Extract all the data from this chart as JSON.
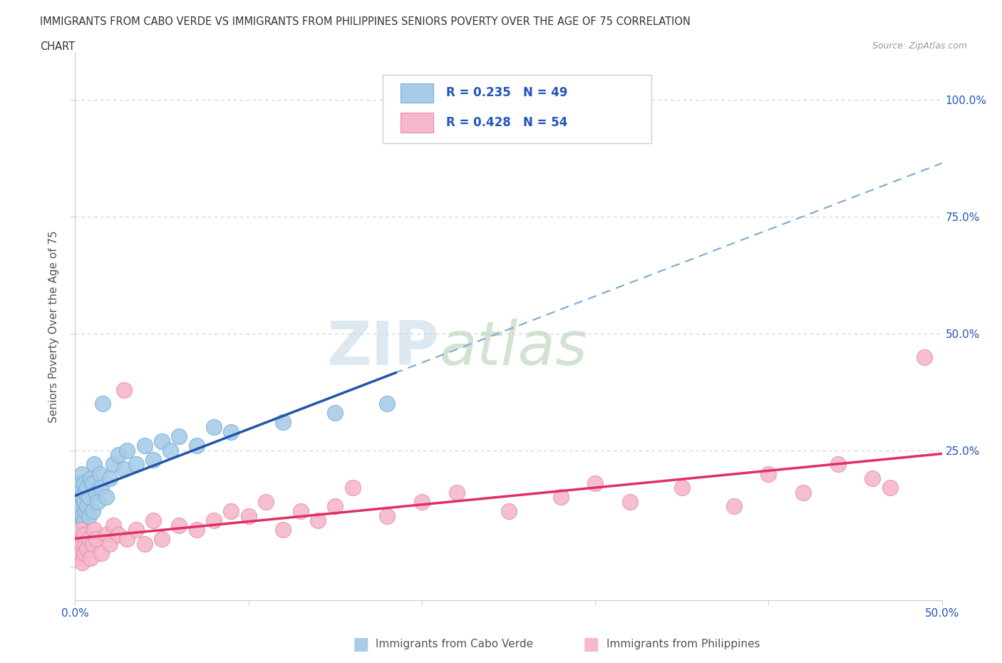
{
  "title_line1": "IMMIGRANTS FROM CABO VERDE VS IMMIGRANTS FROM PHILIPPINES SENIORS POVERTY OVER THE AGE OF 75 CORRELATION",
  "title_line2": "CHART",
  "source": "Source: ZipAtlas.com",
  "ylabel": "Seniors Poverty Over the Age of 75",
  "xlim": [
    0.0,
    0.5
  ],
  "ylim": [
    -0.07,
    1.1
  ],
  "cabo_verde_color": "#a8cce8",
  "cabo_verde_edge": "#7ab0d8",
  "philippines_color": "#f5b8cc",
  "philippines_edge": "#e890a8",
  "cabo_verde_R": 0.235,
  "cabo_verde_N": 49,
  "philippines_R": 0.428,
  "philippines_N": 54,
  "blue_line_color": "#2255aa",
  "pink_line_color": "#e03060",
  "blue_dash_color": "#7aaad4",
  "legend_R_color": "#1a6bb5",
  "tick_color": "#2255bb",
  "background_color": "#ffffff",
  "grid_color": "#cccccc",
  "title_color": "#333333",
  "axis_label_color": "#555555",
  "cabo_verde_x": [
    0.001,
    0.001,
    0.001,
    0.002,
    0.002,
    0.002,
    0.002,
    0.003,
    0.003,
    0.003,
    0.004,
    0.004,
    0.004,
    0.005,
    0.005,
    0.005,
    0.006,
    0.006,
    0.007,
    0.007,
    0.008,
    0.008,
    0.009,
    0.01,
    0.01,
    0.011,
    0.012,
    0.013,
    0.014,
    0.015,
    0.016,
    0.018,
    0.02,
    0.022,
    0.025,
    0.028,
    0.03,
    0.035,
    0.04,
    0.045,
    0.05,
    0.055,
    0.06,
    0.07,
    0.08,
    0.09,
    0.12,
    0.15,
    0.18
  ],
  "cabo_verde_y": [
    0.1,
    0.14,
    0.17,
    0.08,
    0.12,
    0.15,
    0.18,
    0.09,
    0.13,
    0.16,
    0.11,
    0.15,
    0.2,
    0.1,
    0.14,
    0.18,
    0.12,
    0.16,
    0.13,
    0.17,
    0.11,
    0.15,
    0.19,
    0.12,
    0.18,
    0.22,
    0.16,
    0.14,
    0.2,
    0.17,
    0.35,
    0.15,
    0.19,
    0.22,
    0.24,
    0.21,
    0.25,
    0.22,
    0.26,
    0.23,
    0.27,
    0.25,
    0.28,
    0.26,
    0.3,
    0.29,
    0.31,
    0.33,
    0.35
  ],
  "philippines_x": [
    0.001,
    0.001,
    0.002,
    0.002,
    0.003,
    0.003,
    0.004,
    0.004,
    0.005,
    0.005,
    0.006,
    0.007,
    0.008,
    0.009,
    0.01,
    0.011,
    0.012,
    0.015,
    0.018,
    0.02,
    0.022,
    0.025,
    0.028,
    0.03,
    0.035,
    0.04,
    0.045,
    0.05,
    0.06,
    0.07,
    0.08,
    0.09,
    0.1,
    0.11,
    0.12,
    0.13,
    0.14,
    0.15,
    0.16,
    0.18,
    0.2,
    0.22,
    0.25,
    0.28,
    0.3,
    0.32,
    0.35,
    0.38,
    0.4,
    0.42,
    0.44,
    0.46,
    0.47,
    0.49
  ],
  "philippines_y": [
    0.04,
    0.07,
    0.02,
    0.06,
    0.03,
    0.08,
    0.01,
    0.05,
    0.03,
    0.07,
    0.05,
    0.04,
    0.06,
    0.02,
    0.05,
    0.08,
    0.06,
    0.03,
    0.07,
    0.05,
    0.09,
    0.07,
    0.38,
    0.06,
    0.08,
    0.05,
    0.1,
    0.06,
    0.09,
    0.08,
    0.1,
    0.12,
    0.11,
    0.14,
    0.08,
    0.12,
    0.1,
    0.13,
    0.17,
    0.11,
    0.14,
    0.16,
    0.12,
    0.15,
    0.18,
    0.14,
    0.17,
    0.13,
    0.2,
    0.16,
    0.22,
    0.19,
    0.17,
    0.45
  ],
  "watermark_zip": "ZIP",
  "watermark_atlas": "atlas"
}
